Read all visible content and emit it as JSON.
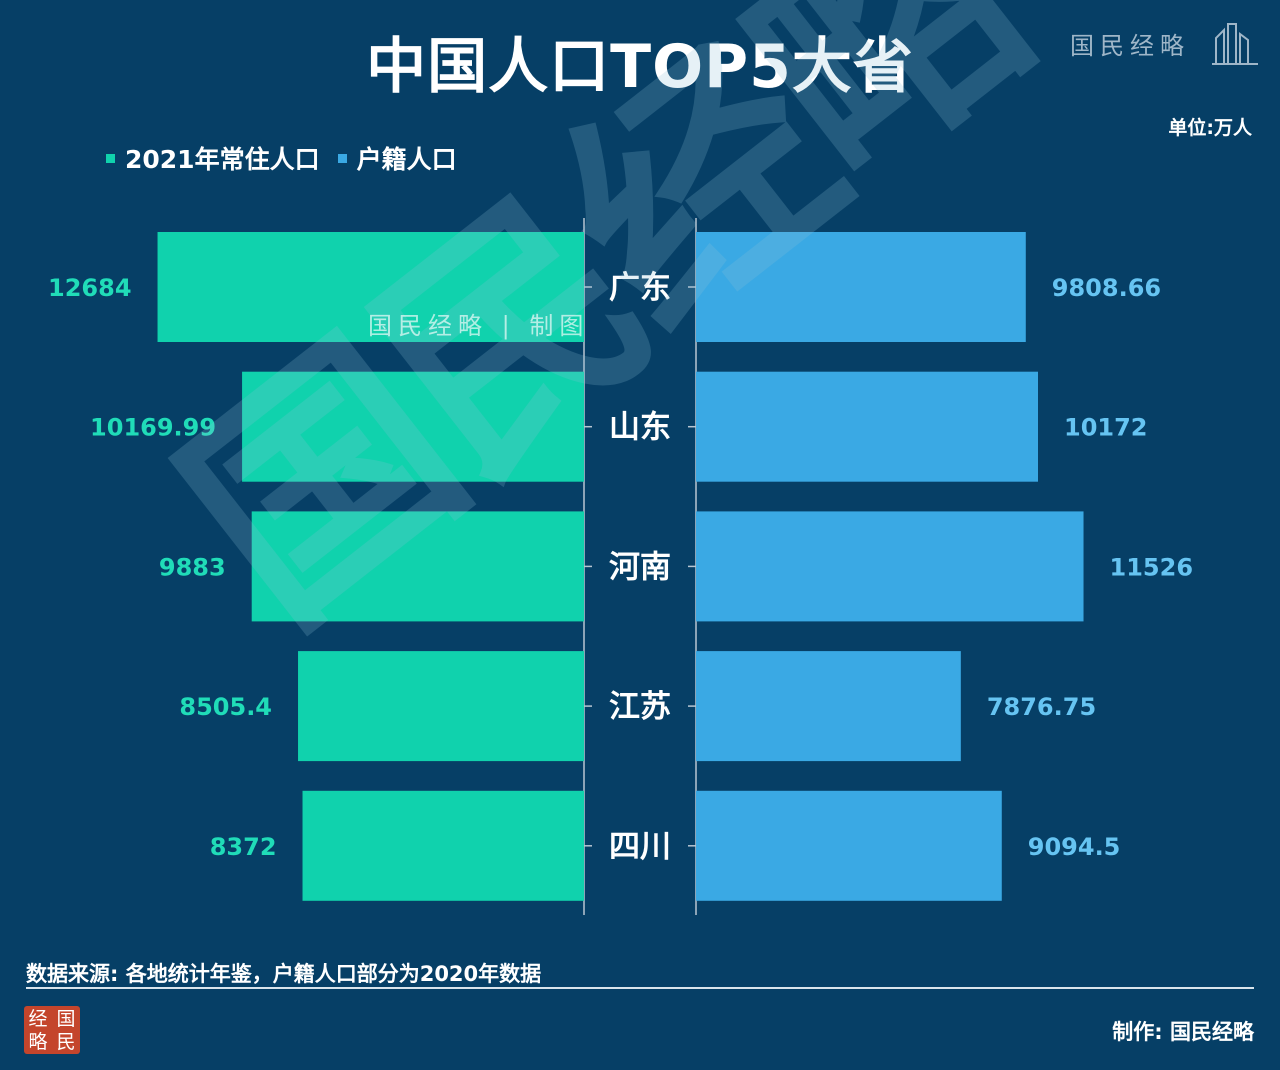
{
  "title": "中国人口TOP5大省",
  "logo": {
    "text": "国民经略"
  },
  "unit": "单位:万人",
  "legend": [
    {
      "label": "2021年常住人口",
      "color": "#10d2ad"
    },
    {
      "label": "户籍人口",
      "color": "#3aa9e4"
    }
  ],
  "watermark": {
    "big": "国民经略",
    "bar_stamp": "国民经略 | 制图"
  },
  "colors": {
    "background": "#063f66",
    "left": "#10d2ad",
    "right": "#3aa9e4",
    "left_label": "#20dcb8",
    "right_label": "#66c4f2"
  },
  "chart_data": {
    "type": "bar",
    "orientation": "horizontal-butterfly",
    "categories": [
      "广东",
      "山东",
      "河南",
      "江苏",
      "四川"
    ],
    "series": [
      {
        "name": "2021年常住人口",
        "values": [
          12684,
          10169.99,
          9883,
          8505.4,
          8372
        ],
        "labels": [
          "12684",
          "10169.99",
          "9883",
          "8505.4",
          "8372"
        ]
      },
      {
        "name": "户籍人口",
        "values": [
          9808.66,
          10172,
          11526,
          7876.75,
          9094.5
        ],
        "labels": [
          "9808.66",
          "10172",
          "11526",
          "7876.75",
          "9094.5"
        ]
      }
    ],
    "xlim": [
      0,
      12700
    ]
  },
  "footer": {
    "source": "数据来源: 各地统计年鉴，户籍人口部分为2020年数据",
    "seal": [
      "经",
      "国",
      "略",
      "民"
    ],
    "maker": "制作: 国民经略"
  }
}
